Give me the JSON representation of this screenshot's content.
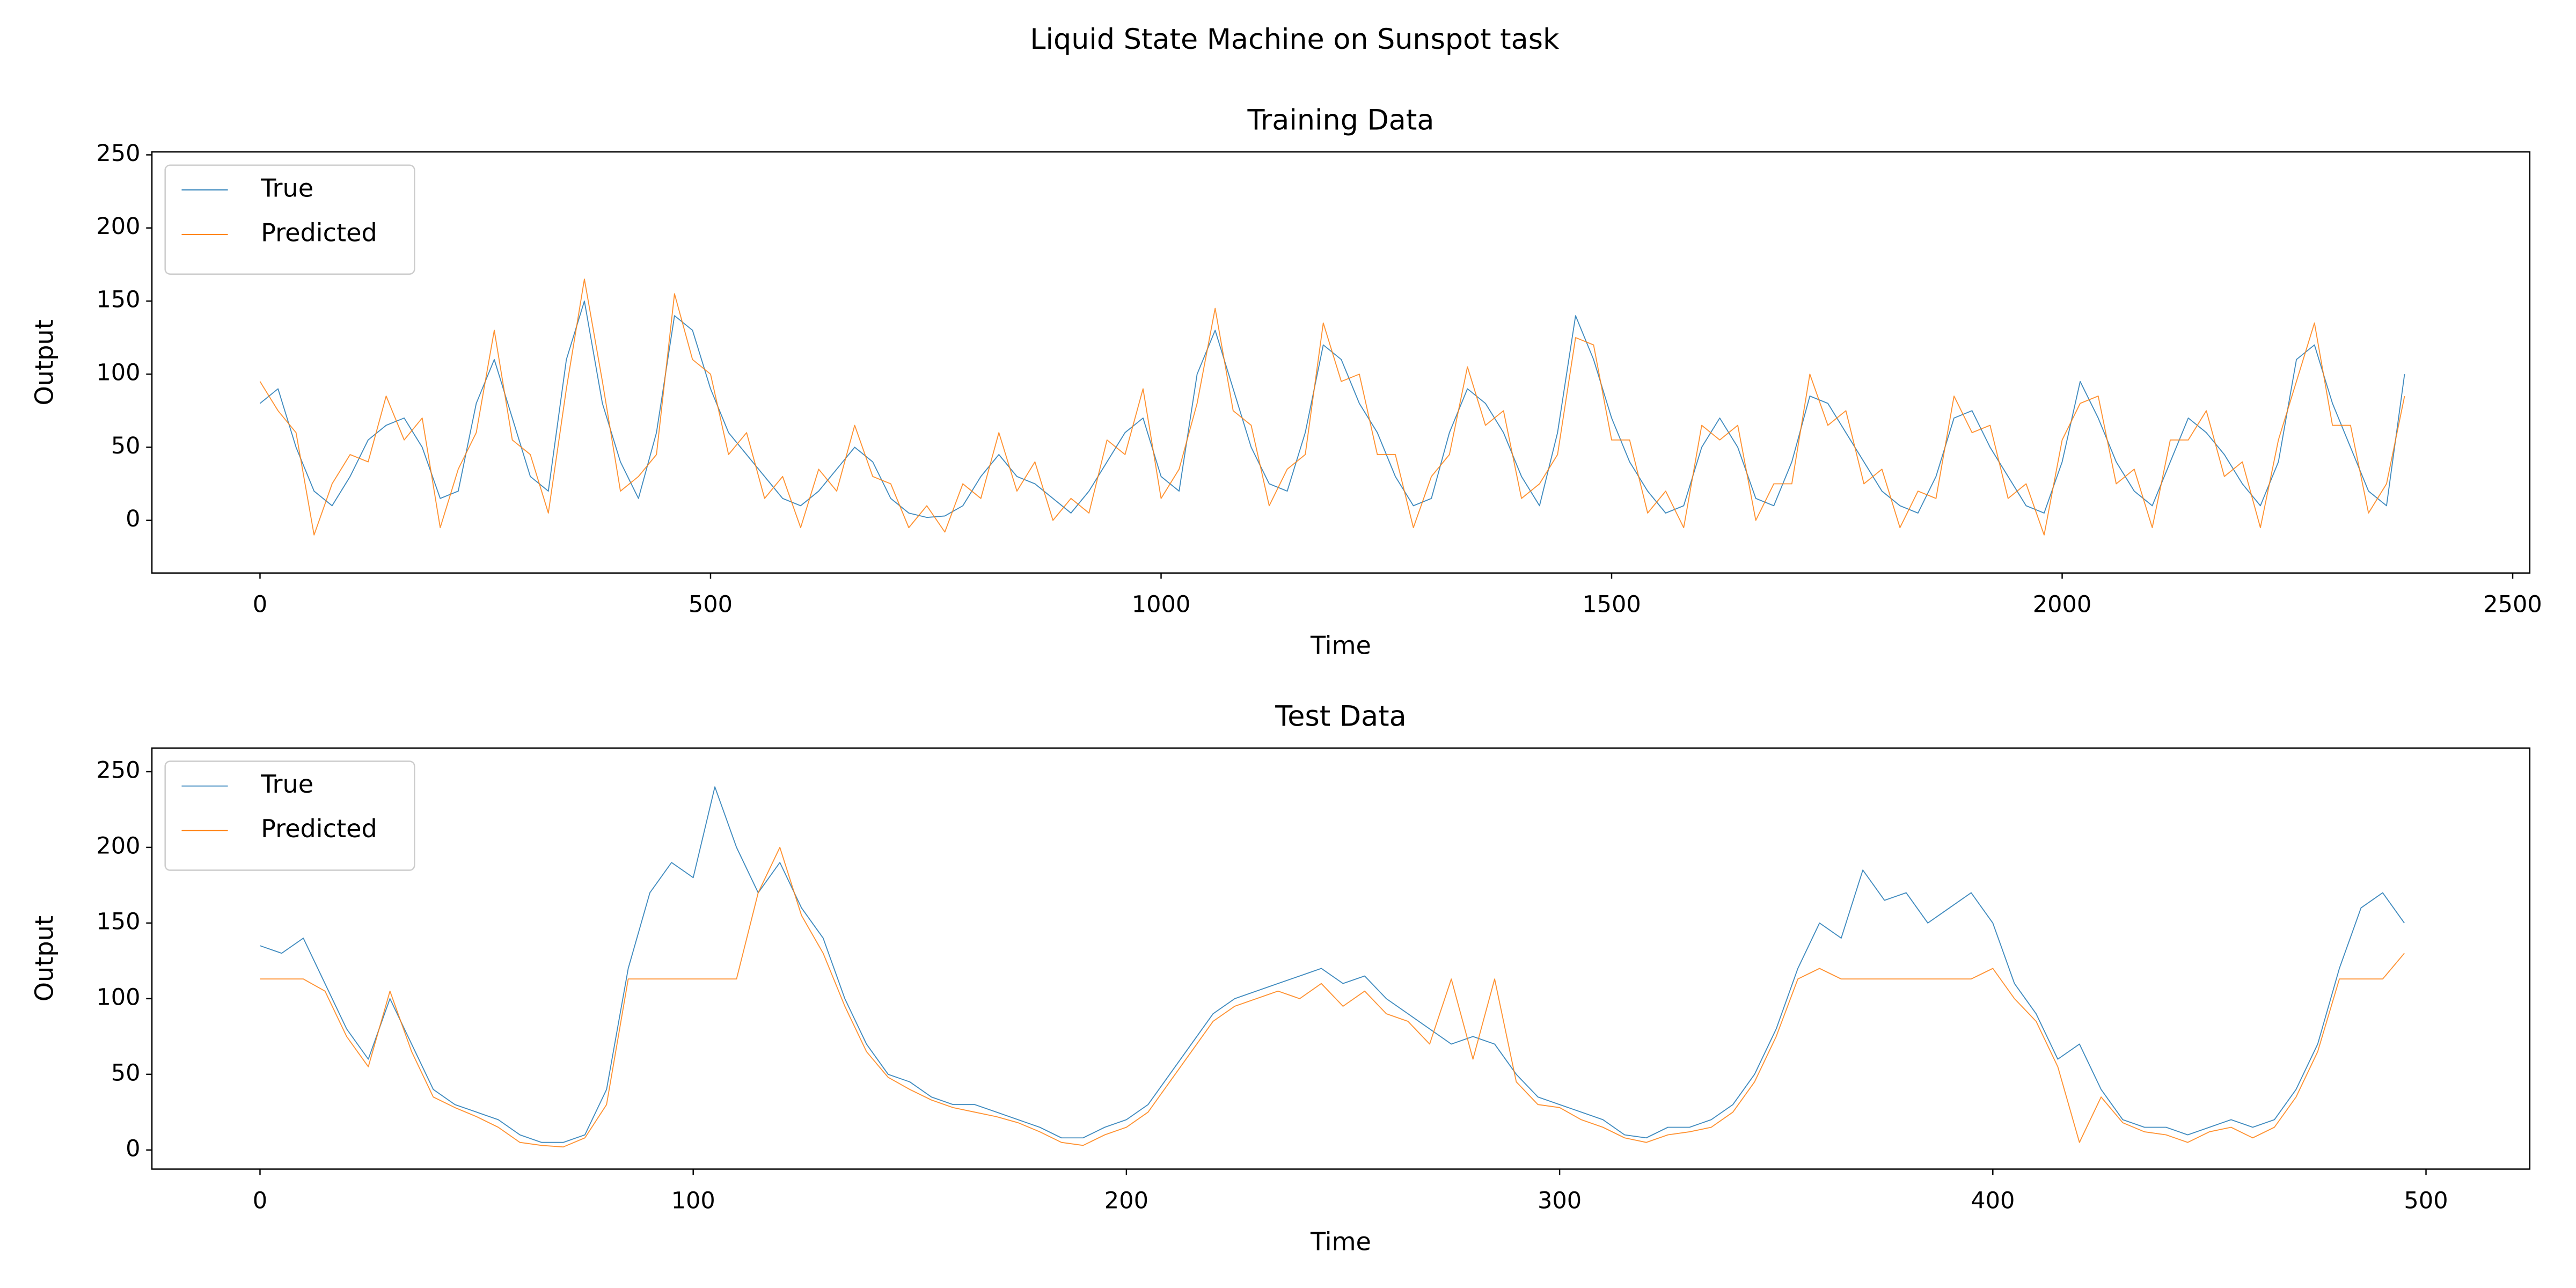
{
  "title": "Liquid State Machine on Sunspot task",
  "chart_data": [
    {
      "type": "line",
      "title": "Training Data",
      "xlabel": "Time",
      "ylabel": "Output",
      "legend": "upper left",
      "xlim": [
        -119.95,
        2518.95
      ],
      "ylim": [
        -36,
        252
      ],
      "xticks": [
        0,
        500,
        1000,
        1500,
        2000,
        2500
      ],
      "yticks": [
        0,
        50,
        100,
        150,
        200,
        250
      ],
      "x": [
        0,
        20,
        40,
        60,
        80,
        100,
        120,
        140,
        160,
        180,
        200,
        220,
        240,
        260,
        280,
        300,
        320,
        340,
        360,
        380,
        400,
        420,
        440,
        460,
        480,
        500,
        520,
        540,
        560,
        580,
        600,
        620,
        640,
        660,
        680,
        700,
        720,
        740,
        760,
        780,
        800,
        820,
        840,
        860,
        880,
        900,
        920,
        940,
        960,
        980,
        1000,
        1020,
        1040,
        1060,
        1080,
        1100,
        1120,
        1140,
        1160,
        1180,
        1200,
        1220,
        1240,
        1260,
        1280,
        1300,
        1320,
        1340,
        1360,
        1380,
        1400,
        1420,
        1440,
        1460,
        1480,
        1500,
        1520,
        1540,
        1560,
        1580,
        1600,
        1620,
        1640,
        1660,
        1680,
        1700,
        1720,
        1740,
        1760,
        1780,
        1800,
        1820,
        1840,
        1860,
        1880,
        1900,
        1920,
        1940,
        1960,
        1980,
        2000,
        2020,
        2040,
        2060,
        2080,
        2100,
        2120,
        2140,
        2160,
        2180,
        2200,
        2220,
        2240,
        2260,
        2280,
        2300,
        2320,
        2340,
        2360,
        2380
      ],
      "series": [
        {
          "name": "True",
          "color": "#1f77b4",
          "values": [
            80,
            90,
            50,
            20,
            10,
            30,
            55,
            65,
            70,
            50,
            15,
            20,
            80,
            110,
            70,
            30,
            20,
            110,
            150,
            80,
            40,
            15,
            60,
            140,
            130,
            90,
            60,
            45,
            30,
            15,
            10,
            20,
            35,
            50,
            40,
            15,
            5,
            2,
            3,
            10,
            30,
            45,
            30,
            25,
            15,
            5,
            20,
            40,
            60,
            70,
            30,
            20,
            100,
            130,
            90,
            50,
            25,
            20,
            60,
            120,
            110,
            80,
            60,
            30,
            10,
            15,
            60,
            90,
            80,
            60,
            30,
            10,
            60,
            140,
            110,
            70,
            40,
            20,
            5,
            10,
            50,
            70,
            50,
            15,
            10,
            40,
            85,
            80,
            60,
            40,
            20,
            10,
            5,
            30,
            70,
            75,
            50,
            30,
            10,
            5,
            40,
            95,
            70,
            40,
            20,
            10,
            40,
            70,
            60,
            45,
            25,
            10,
            40,
            110,
            120,
            80,
            50,
            20,
            10,
            100
          ]
        },
        {
          "name": "Predicted",
          "color": "#ff7f0e",
          "values": [
            95,
            75,
            60,
            -10,
            25,
            45,
            40,
            85,
            55,
            70,
            -5,
            35,
            60,
            130,
            55,
            45,
            5,
            90,
            165,
            95,
            20,
            30,
            45,
            155,
            110,
            100,
            45,
            60,
            15,
            30,
            -5,
            35,
            20,
            65,
            30,
            25,
            -5,
            10,
            -8,
            25,
            15,
            60,
            20,
            40,
            0,
            15,
            5,
            55,
            45,
            90,
            15,
            35,
            80,
            145,
            75,
            65,
            10,
            35,
            45,
            135,
            95,
            100,
            45,
            45,
            -5,
            30,
            45,
            105,
            65,
            75,
            15,
            25,
            45,
            125,
            120,
            55,
            55,
            5,
            20,
            -5,
            65,
            55,
            65,
            0,
            25,
            25,
            100,
            65,
            75,
            25,
            35,
            -5,
            20,
            15,
            85,
            60,
            65,
            15,
            25,
            -10,
            55,
            80,
            85,
            25,
            35,
            -5,
            55,
            55,
            75,
            30,
            40,
            -5,
            55,
            95,
            135,
            65,
            65,
            5,
            25,
            85
          ]
        }
      ]
    },
    {
      "type": "line",
      "title": "Test Data",
      "xlabel": "Time",
      "ylabel": "Output",
      "legend": "upper left",
      "xlim": [
        -24.95,
        523.95
      ],
      "ylim": [
        -12.65,
        265.65
      ],
      "xticks": [
        0,
        100,
        200,
        300,
        400,
        500
      ],
      "yticks": [
        0,
        50,
        100,
        150,
        200,
        250
      ],
      "x": [
        0,
        5,
        10,
        15,
        20,
        25,
        30,
        35,
        40,
        45,
        50,
        55,
        60,
        65,
        70,
        75,
        80,
        85,
        90,
        95,
        100,
        105,
        110,
        115,
        120,
        125,
        130,
        135,
        140,
        145,
        150,
        155,
        160,
        165,
        170,
        175,
        180,
        185,
        190,
        195,
        200,
        205,
        210,
        215,
        220,
        225,
        230,
        235,
        240,
        245,
        250,
        255,
        260,
        265,
        270,
        275,
        280,
        285,
        290,
        295,
        300,
        305,
        310,
        315,
        320,
        325,
        330,
        335,
        340,
        345,
        350,
        355,
        360,
        365,
        370,
        375,
        380,
        385,
        390,
        395,
        400,
        405,
        410,
        415,
        420,
        425,
        430,
        435,
        440,
        445,
        450,
        455,
        460,
        465,
        470,
        475,
        480,
        485,
        490,
        495
      ],
      "series": [
        {
          "name": "True",
          "color": "#1f77b4",
          "values": [
            135,
            130,
            140,
            110,
            80,
            60,
            100,
            70,
            40,
            30,
            25,
            20,
            10,
            5,
            5,
            10,
            40,
            120,
            170,
            190,
            180,
            240,
            200,
            170,
            190,
            160,
            140,
            100,
            70,
            50,
            45,
            35,
            30,
            30,
            25,
            20,
            15,
            8,
            8,
            15,
            20,
            30,
            50,
            70,
            90,
            100,
            105,
            110,
            115,
            120,
            110,
            115,
            100,
            90,
            80,
            70,
            75,
            70,
            50,
            35,
            30,
            25,
            20,
            10,
            8,
            15,
            15,
            20,
            30,
            50,
            80,
            120,
            150,
            140,
            185,
            165,
            170,
            150,
            160,
            170,
            150,
            110,
            90,
            60,
            70,
            40,
            20,
            15,
            15,
            10,
            15,
            20,
            15,
            20,
            40,
            70,
            120,
            160,
            170,
            150
          ]
        },
        {
          "name": "Predicted",
          "color": "#ff7f0e",
          "values": [
            113,
            113,
            113,
            105,
            75,
            55,
            105,
            65,
            35,
            28,
            22,
            15,
            5,
            3,
            2,
            8,
            30,
            113,
            113,
            113,
            113,
            113,
            113,
            170,
            200,
            155,
            130,
            95,
            65,
            48,
            40,
            33,
            28,
            25,
            22,
            18,
            12,
            5,
            3,
            10,
            15,
            25,
            45,
            65,
            85,
            95,
            100,
            105,
            100,
            110,
            95,
            105,
            90,
            85,
            70,
            113,
            60,
            113,
            45,
            30,
            28,
            20,
            15,
            8,
            5,
            10,
            12,
            15,
            25,
            45,
            75,
            113,
            120,
            113,
            113,
            113,
            113,
            113,
            113,
            113,
            120,
            100,
            85,
            55,
            5,
            35,
            18,
            12,
            10,
            5,
            12,
            15,
            8,
            15,
            35,
            65,
            113,
            113,
            113,
            130
          ]
        }
      ]
    }
  ]
}
